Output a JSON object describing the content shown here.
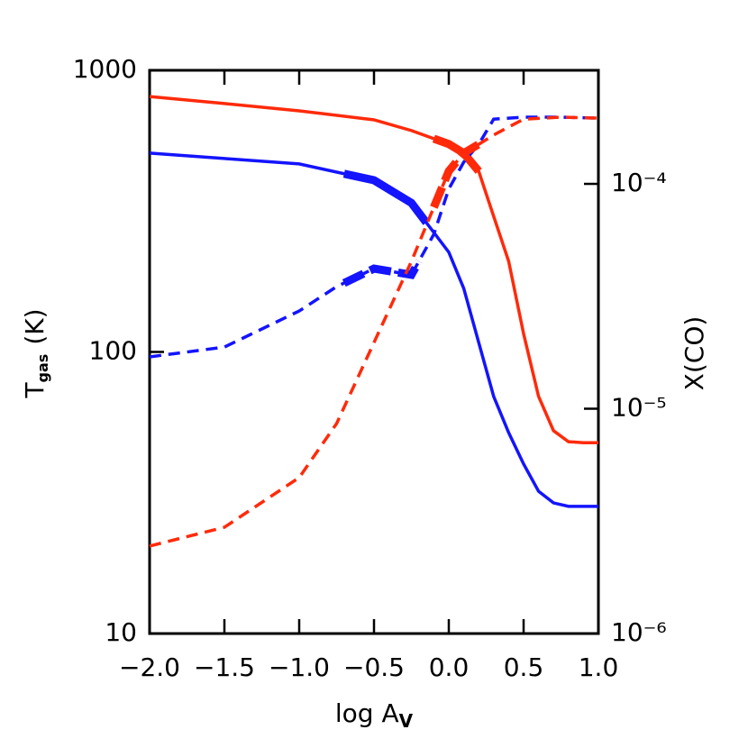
{
  "chart_data": {
    "type": "line",
    "xlabel": {
      "text": "log A",
      "sub": "V"
    },
    "ylabel": {
      "text": "T",
      "sub": "gas",
      "suffix": "(K)"
    },
    "y2label": "X(CO)",
    "xlim": [
      -2,
      1
    ],
    "xticks": [
      {
        "value": -2,
        "label": "−2.0"
      },
      {
        "value": -1.5,
        "label": "−1.5"
      },
      {
        "value": -1,
        "label": "−1.0"
      },
      {
        "value": -0.5,
        "label": "−0.5"
      },
      {
        "value": 0,
        "label": "0.0"
      },
      {
        "value": 0.5,
        "label": "0.5"
      },
      {
        "value": 1,
        "label": "1.0"
      }
    ],
    "ylim": [
      10,
      1000
    ],
    "ylog": true,
    "yticks": [
      10,
      100,
      1000
    ],
    "y2lim": [
      1e-06,
      0.00032
    ],
    "y2log": true,
    "y2ticks": [
      {
        "value": 1e-06,
        "label": "10⁻⁶"
      },
      {
        "value": 1e-05,
        "label": "10⁻⁵"
      },
      {
        "value": 0.0001,
        "label": "10⁻⁴"
      }
    ],
    "series": [
      {
        "color": "#ff2a0a",
        "dashed": false,
        "highlight": [
          -0.1,
          0.2
        ],
        "x": [
          -2,
          -1.5,
          -1,
          -0.5,
          -0.25,
          0,
          0.1,
          0.2,
          0.3,
          0.4,
          0.5,
          0.6,
          0.7,
          0.8,
          0.9,
          1.0
        ],
        "values": [
          807,
          762,
          718,
          667,
          611,
          547,
          508,
          438,
          303,
          210,
          116,
          69.5,
          52.5,
          48,
          47.6,
          47.6
        ]
      },
      {
        "color": "#1414ff",
        "dashed": false,
        "highlight": [
          -0.7,
          -0.15
        ],
        "x": [
          -2,
          -1.5,
          -1,
          -0.5,
          -0.25,
          0,
          0.1,
          0.2,
          0.3,
          0.4,
          0.5,
          0.6,
          0.7,
          0.8,
          0.9,
          1.0
        ],
        "values": [
          508,
          486,
          465,
          407,
          338,
          226,
          168,
          108,
          69.5,
          51.7,
          40,
          32,
          29.1,
          28.3,
          28.3,
          28.3
        ]
      },
      {
        "color": "#1414ff",
        "dashed": true,
        "axis": "y2",
        "highlight": [
          -0.7,
          -0.2
        ],
        "x": [
          -2,
          -1.5,
          -1,
          -0.75,
          -0.5,
          -0.25,
          -0.1,
          0,
          0.1,
          0.2,
          0.3,
          0.5,
          0.75,
          1.0
        ],
        "values": [
          1.7e-05,
          1.88e-05,
          2.72e-05,
          3.49e-05,
          4.2e-05,
          3.94e-05,
          5.97e-05,
          9.5e-05,
          0.000125,
          0.00015,
          0.000194,
          0.000198,
          0.000198,
          0.000196
        ]
      },
      {
        "color": "#ff2a0a",
        "dashed": true,
        "axis": "y2",
        "highlight": [
          -0.1,
          0.2
        ],
        "x": [
          -2,
          -1.5,
          -1,
          -0.75,
          -0.5,
          -0.25,
          -0.1,
          0,
          0.1,
          0.2,
          0.3,
          0.5,
          0.75,
          1.0
        ],
        "values": [
          2.45e-06,
          2.97e-06,
          4.94e-06,
          8.59e-06,
          1.97e-05,
          4.52e-05,
          7.87e-05,
          0.000114,
          0.000137,
          0.00015,
          0.000165,
          0.000194,
          0.000198,
          0.000196
        ]
      }
    ]
  }
}
